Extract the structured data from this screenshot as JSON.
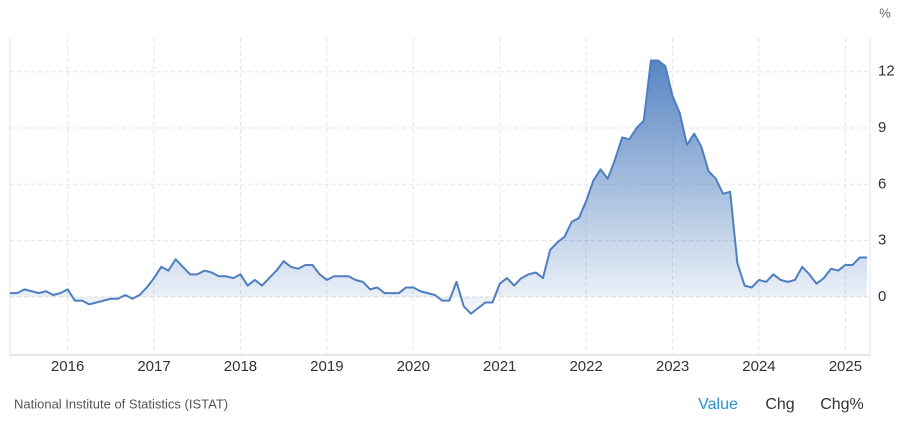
{
  "chart_data": {
    "type": "area",
    "unit": "%",
    "color": "#4f7fbf",
    "grid": true,
    "y_axis_side": "right",
    "ylim": [
      -3.1,
      13.8
    ],
    "yticks": [
      0,
      3,
      6,
      9,
      12
    ],
    "categories": [
      null,
      null,
      null,
      null,
      null,
      null,
      null,
      null,
      "2016",
      null,
      null,
      null,
      null,
      null,
      null,
      null,
      null,
      null,
      null,
      null,
      "2017",
      null,
      null,
      null,
      null,
      null,
      null,
      null,
      null,
      null,
      null,
      null,
      "2018",
      null,
      null,
      null,
      null,
      null,
      null,
      null,
      null,
      null,
      null,
      null,
      "2019",
      null,
      null,
      null,
      null,
      null,
      null,
      null,
      null,
      null,
      null,
      null,
      "2020",
      null,
      null,
      null,
      null,
      null,
      null,
      null,
      null,
      null,
      null,
      null,
      "2021",
      null,
      null,
      null,
      null,
      null,
      null,
      null,
      null,
      null,
      null,
      null,
      "2022",
      null,
      null,
      null,
      null,
      null,
      null,
      null,
      null,
      null,
      null,
      null,
      "2023",
      null,
      null,
      null,
      null,
      null,
      null,
      null,
      null,
      null,
      null,
      null,
      "2024",
      null,
      null,
      null,
      null,
      null,
      null,
      null,
      null,
      null,
      null,
      null,
      "2025",
      null,
      null,
      null
    ],
    "values": [
      0.2,
      0.2,
      0.4,
      0.3,
      0.2,
      0.3,
      0.1,
      0.2,
      0.4,
      -0.2,
      -0.2,
      -0.4,
      -0.3,
      -0.2,
      -0.1,
      -0.1,
      0.1,
      -0.1,
      0.1,
      0.5,
      1.0,
      1.6,
      1.4,
      2.0,
      1.6,
      1.2,
      1.2,
      1.4,
      1.3,
      1.1,
      1.1,
      1.0,
      1.2,
      0.6,
      0.9,
      0.6,
      1.0,
      1.4,
      1.9,
      1.6,
      1.5,
      1.7,
      1.7,
      1.2,
      0.9,
      1.1,
      1.1,
      1.1,
      0.9,
      0.8,
      0.4,
      0.5,
      0.2,
      0.2,
      0.2,
      0.5,
      0.5,
      0.3,
      0.2,
      0.1,
      -0.2,
      -0.2,
      0.8,
      -0.5,
      -0.9,
      -0.6,
      -0.3,
      -0.3,
      0.7,
      1.0,
      0.6,
      1.0,
      1.2,
      1.3,
      1.0,
      2.5,
      2.9,
      3.2,
      4.0,
      4.2,
      5.1,
      6.2,
      6.8,
      6.3,
      7.3,
      8.5,
      8.4,
      9.0,
      9.4,
      12.6,
      12.6,
      12.3,
      10.7,
      9.8,
      8.1,
      8.7,
      8.0,
      6.7,
      6.3,
      5.5,
      5.6,
      1.8,
      0.6,
      0.5,
      0.9,
      0.8,
      1.2,
      0.9,
      0.8,
      0.9,
      1.6,
      1.2,
      0.7,
      1.0,
      1.5,
      1.4,
      1.7,
      1.7,
      2.1,
      2.1
    ]
  },
  "source": "National Institute of Statistics (ISTAT)",
  "controls": [
    "Value",
    "Chg",
    "Chg%"
  ]
}
